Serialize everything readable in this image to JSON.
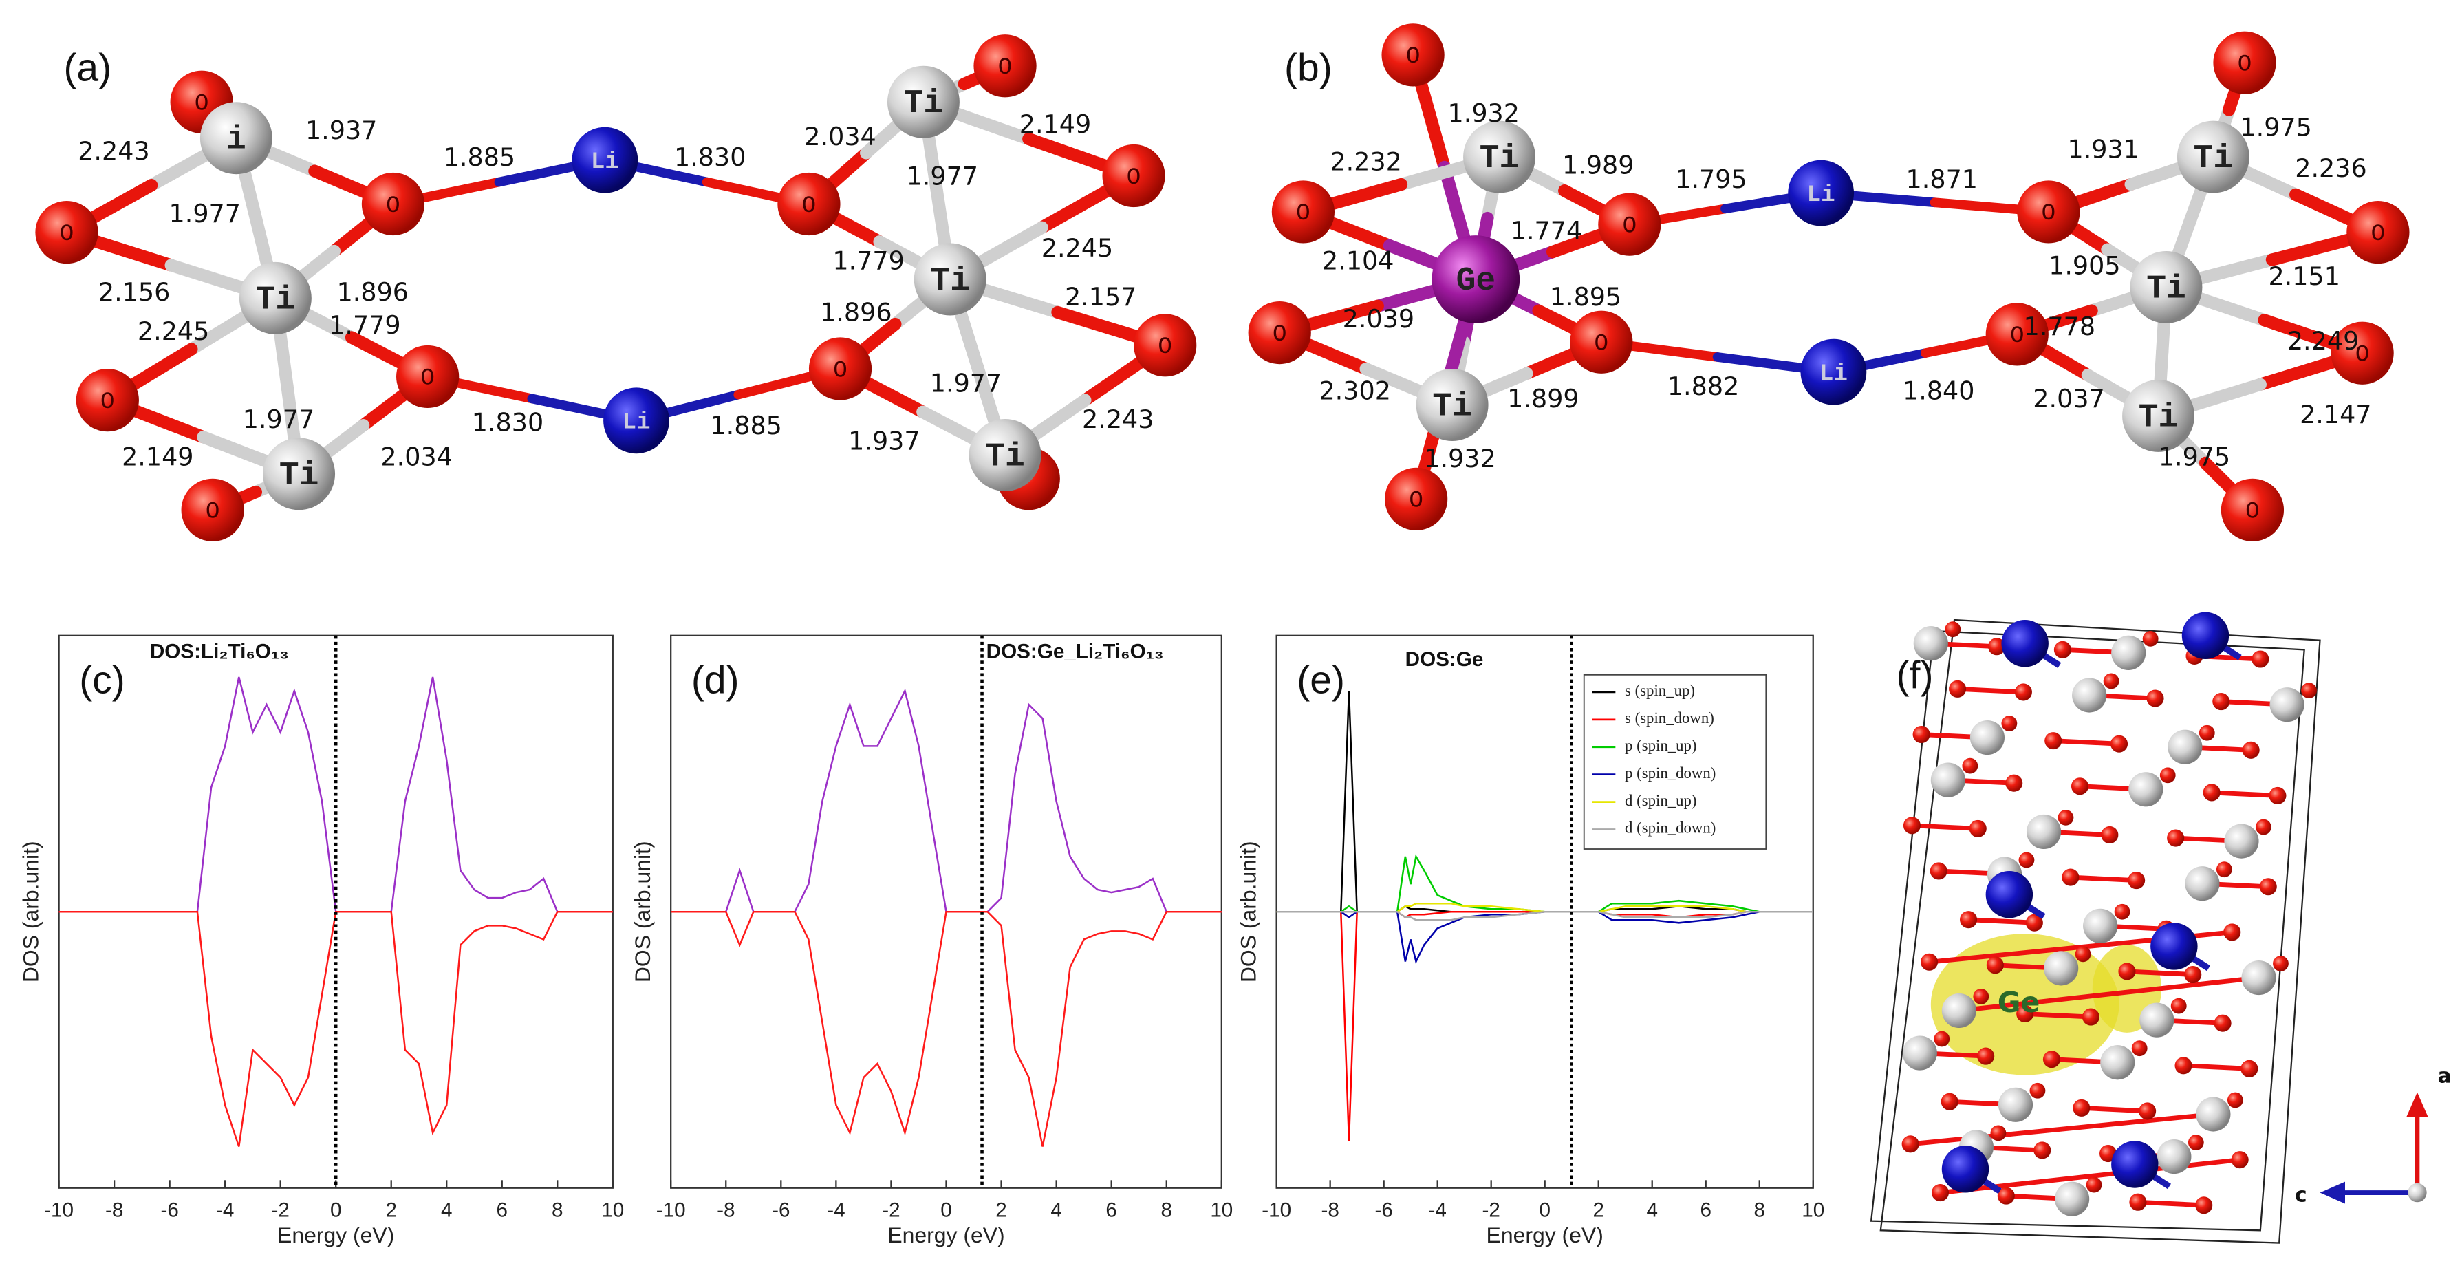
{
  "diagrams": [
    {
      "panel": "(a)",
      "atoms": [
        "O",
        "i",
        "O",
        "O",
        "Ti",
        "O",
        "O",
        "Ti",
        "O",
        "Li",
        "Li",
        "O",
        "Ti",
        "O",
        "O",
        "Ti",
        "O",
        "O",
        "Ti"
      ],
      "bond_lengths": [
        "2.243",
        "1.937",
        "1.885",
        "1.830",
        "2.034",
        "2.149",
        "1.977",
        "1.977",
        "2.156",
        "1.896",
        "1.779",
        "2.245",
        "2.245",
        "1.779",
        "2.157",
        "1.896",
        "1.977",
        "1.830",
        "1.885",
        "1.977",
        "2.149",
        "2.034",
        "1.937",
        "2.243"
      ]
    },
    {
      "panel": "(b)",
      "atoms": [
        "O",
        "Ti",
        "O",
        "Ge",
        "O",
        "O",
        "O",
        "Ti",
        "O",
        "Li",
        "Li",
        "O",
        "Ti",
        "O",
        "O",
        "Ti",
        "O",
        "O",
        "Ti",
        "O"
      ],
      "bond_lengths": [
        "1.932",
        "1.975",
        "2.232",
        "1.989",
        "1.795",
        "1.871",
        "1.931",
        "2.236",
        "1.774",
        "2.104",
        "1.895",
        "1.905",
        "2.151",
        "2.039",
        "1.778",
        "2.249",
        "2.302",
        "1.899",
        "1.882",
        "1.840",
        "2.037",
        "2.147",
        "1.932",
        "1.975"
      ]
    }
  ],
  "chart_data": [
    {
      "type": "line",
      "panel": "(c)",
      "title": "DOS:Li₂Ti₆O₁₃",
      "x_label": "Energy (eV)",
      "y_label": "DOS (arb.unit)",
      "xlim": [
        -10,
        10
      ],
      "xticks": [
        -10,
        -8,
        -6,
        -4,
        -2,
        0,
        2,
        4,
        6,
        8,
        10
      ],
      "ylim": [
        -10,
        10
      ],
      "fermi_level": 0,
      "x": [
        -10,
        -9.5,
        -9,
        -8.5,
        -8,
        -7.5,
        -7,
        -6.5,
        -6,
        -5.5,
        -5,
        -4.5,
        -4,
        -3.5,
        -3,
        -2.5,
        -2,
        -1.5,
        -1,
        -0.5,
        0,
        0.5,
        1,
        1.5,
        2,
        2.5,
        3,
        3.5,
        4,
        4.5,
        5,
        5.5,
        6,
        6.5,
        7,
        7.5,
        8,
        8.5,
        9,
        9.5,
        10
      ],
      "series": [
        {
          "color": "#9b30c8",
          "values": [
            0,
            0,
            0,
            0,
            0,
            0,
            0,
            0,
            0,
            0,
            0,
            4.5,
            6,
            8.5,
            6.5,
            7.5,
            6.5,
            8,
            6.5,
            4,
            0,
            0,
            0,
            0,
            0,
            4,
            6,
            8.5,
            5.5,
            1.5,
            0.8,
            0.5,
            0.5,
            0.7,
            0.8,
            1.2,
            0,
            0,
            0,
            0,
            0
          ]
        },
        {
          "color": "#ff1a1a",
          "values": [
            0,
            0,
            0,
            0,
            0,
            0,
            0,
            0,
            0,
            0,
            0,
            -4.5,
            -7,
            -8.5,
            -5,
            -5.5,
            -6,
            -7,
            -6,
            -3,
            0,
            0,
            0,
            0,
            0,
            -5,
            -5.5,
            -8,
            -7,
            -1.2,
            -0.7,
            -0.5,
            -0.5,
            -0.6,
            -0.8,
            -1,
            0,
            0,
            0,
            0,
            0
          ]
        }
      ]
    },
    {
      "type": "line",
      "panel": "(d)",
      "title": "DOS:Ge_Li₂Ti₆O₁₃",
      "x_label": "Energy (eV)",
      "y_label": "DOS (arb.unit)",
      "xlim": [
        -10,
        10
      ],
      "xticks": [
        -10,
        -8,
        -6,
        -4,
        -2,
        0,
        2,
        4,
        6,
        8,
        10
      ],
      "ylim": [
        -10,
        10
      ],
      "fermi_level": 1.3,
      "x": [
        -10,
        -9.5,
        -9,
        -8.5,
        -8,
        -7.5,
        -7,
        -6.5,
        -6,
        -5.5,
        -5,
        -4.5,
        -4,
        -3.5,
        -3,
        -2.5,
        -2,
        -1.5,
        -1,
        -0.5,
        0,
        0.5,
        1,
        1.5,
        2,
        2.5,
        3,
        3.5,
        4,
        4.5,
        5,
        5.5,
        6,
        6.5,
        7,
        7.5,
        8,
        8.5,
        9,
        9.5,
        10
      ],
      "series": [
        {
          "color": "#9b30c8",
          "values": [
            0,
            0,
            0,
            0,
            0,
            1.5,
            0,
            0,
            0,
            0,
            1,
            4,
            6,
            7.5,
            6,
            6,
            7,
            8,
            6,
            3,
            0,
            0,
            0,
            0,
            0.5,
            5,
            7.5,
            7,
            4,
            2,
            1.2,
            0.8,
            0.7,
            0.8,
            0.9,
            1.2,
            0,
            0,
            0,
            0,
            0
          ]
        },
        {
          "color": "#ff1a1a",
          "values": [
            0,
            0,
            0,
            0,
            0,
            -1.2,
            0,
            0,
            0,
            0,
            -1,
            -4,
            -7,
            -8,
            -6,
            -5.5,
            -6.5,
            -8,
            -6,
            -3,
            0,
            0,
            0,
            0,
            -0.5,
            -5,
            -6,
            -8.5,
            -6,
            -2,
            -1,
            -0.8,
            -0.7,
            -0.7,
            -0.8,
            -1,
            0,
            0,
            0,
            0,
            0
          ]
        }
      ]
    },
    {
      "type": "line",
      "panel": "(e)",
      "title": "DOS:Ge",
      "x_label": "Energy (eV)",
      "y_label": "DOS (arb.unit)",
      "xlim": [
        -10,
        10
      ],
      "xticks": [
        -10,
        -8,
        -6,
        -4,
        -2,
        0,
        2,
        4,
        6,
        8,
        10
      ],
      "ylim": [
        -10,
        10
      ],
      "fermi_level": 1,
      "legend": "upper right",
      "x": [
        -10,
        -7.6,
        -7.3,
        -7,
        -5.5,
        -5.2,
        -5,
        -4.8,
        -4.5,
        -4,
        -3.5,
        -3,
        -2,
        -1,
        0,
        1,
        2,
        2.5,
        3,
        4,
        5,
        6,
        7,
        7.5,
        8,
        10
      ],
      "series": [
        {
          "name": "s (spin_up)",
          "color": "#000000",
          "values": [
            0,
            0,
            8,
            0,
            0,
            0.2,
            0.1,
            0.1,
            0.1,
            0.05,
            0,
            0,
            0,
            0,
            0,
            0,
            0,
            0.1,
            0.1,
            0.1,
            0.2,
            0.1,
            0.1,
            0,
            0,
            0
          ]
        },
        {
          "name": "s (spin_down)",
          "color": "#ff0000",
          "values": [
            0,
            0,
            -8.3,
            0,
            0,
            -0.2,
            -0.1,
            -0.1,
            -0.1,
            -0.05,
            0,
            0,
            0,
            0,
            0,
            0,
            0,
            -0.1,
            -0.1,
            -0.1,
            -0.2,
            -0.1,
            -0.1,
            0,
            0,
            0
          ]
        },
        {
          "name": "p (spin_up)",
          "color": "#00cc00",
          "values": [
            0,
            0,
            0.2,
            0,
            0,
            2,
            1,
            2,
            1.5,
            0.6,
            0.4,
            0.2,
            0.1,
            0.1,
            0,
            0,
            0,
            0.3,
            0.3,
            0.3,
            0.4,
            0.3,
            0.2,
            0.1,
            0,
            0
          ]
        },
        {
          "name": "p (spin_down)",
          "color": "#0000aa",
          "values": [
            0,
            0,
            -0.2,
            0,
            0,
            -1.8,
            -1,
            -1.8,
            -1.2,
            -0.6,
            -0.4,
            -0.2,
            -0.1,
            -0.1,
            0,
            0,
            0,
            -0.3,
            -0.3,
            -0.3,
            -0.4,
            -0.3,
            -0.2,
            -0.1,
            0,
            0
          ]
        },
        {
          "name": "d (spin_up)",
          "color": "#e6e600",
          "values": [
            0,
            0,
            0,
            0,
            0,
            0.2,
            0.2,
            0.3,
            0.3,
            0.3,
            0.3,
            0.2,
            0.2,
            0.1,
            0,
            0,
            0,
            0.1,
            0.2,
            0.2,
            0.2,
            0.2,
            0.1,
            0,
            0,
            0
          ]
        },
        {
          "name": "d (spin_down)",
          "color": "#aaaaaa",
          "values": [
            0,
            0,
            0,
            0,
            0,
            -0.2,
            -0.2,
            -0.3,
            -0.3,
            -0.3,
            -0.3,
            -0.2,
            -0.2,
            -0.1,
            0,
            0,
            0,
            -0.1,
            -0.2,
            -0.2,
            -0.2,
            -0.2,
            -0.1,
            0,
            0,
            0
          ]
        }
      ]
    }
  ],
  "structure": {
    "panel": "(f)",
    "label": "Ge",
    "axes": [
      "a",
      "c"
    ]
  }
}
